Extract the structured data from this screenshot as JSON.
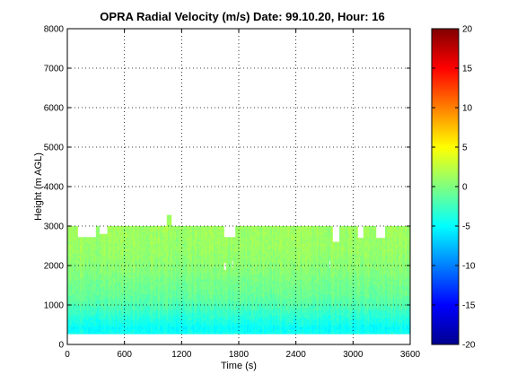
{
  "chart_data": {
    "type": "heatmap",
    "title": "OPRA Radial Velocity (m/s)  Date: 99.10.20, Hour: 16",
    "xlabel": "Time (s)",
    "ylabel": "Height (m AGL)",
    "xlim": [
      0,
      3600
    ],
    "ylim": [
      0,
      8000
    ],
    "x_ticks": [
      0,
      600,
      1200,
      1800,
      2400,
      3000,
      3600
    ],
    "y_ticks": [
      0,
      1000,
      2000,
      3000,
      4000,
      5000,
      6000,
      7000,
      8000
    ],
    "grid": true,
    "colormap": "jet",
    "clim": [
      -20,
      20
    ],
    "colorbar_ticks": [
      -20,
      -15,
      -10,
      -5,
      0,
      5,
      10,
      15,
      20
    ],
    "data_extent": {
      "time": [
        0,
        3600
      ],
      "height": [
        270,
        3000
      ]
    },
    "height_profile": [
      {
        "height": 300,
        "velocity": -4.5
      },
      {
        "height": 400,
        "velocity": -5.0
      },
      {
        "height": 500,
        "velocity": -4.2
      },
      {
        "height": 600,
        "velocity": -3.8
      },
      {
        "height": 700,
        "velocity": -3.2
      },
      {
        "height": 800,
        "velocity": -2.8
      },
      {
        "height": 900,
        "velocity": -2.2
      },
      {
        "height": 1000,
        "velocity": -1.8
      },
      {
        "height": 1200,
        "velocity": -1.0
      },
      {
        "height": 1400,
        "velocity": -0.6
      },
      {
        "height": 1600,
        "velocity": -0.3
      },
      {
        "height": 1800,
        "velocity": 0.2
      },
      {
        "height": 2000,
        "velocity": 0.5
      },
      {
        "height": 2200,
        "velocity": 0.8
      },
      {
        "height": 2400,
        "velocity": 1.0
      },
      {
        "height": 2600,
        "velocity": 1.1
      },
      {
        "height": 2800,
        "velocity": 1.2
      },
      {
        "height": 3000,
        "velocity": 1.2
      }
    ],
    "top_gaps": [
      {
        "time": [
          100,
          300
        ],
        "height_top": 2720
      },
      {
        "time": [
          330,
          420
        ],
        "height_top": 2800
      },
      {
        "time": [
          1640,
          1760
        ],
        "height_top": 2720
      },
      {
        "time": [
          2780,
          2850
        ],
        "height_top": 2600
      },
      {
        "time": [
          3040,
          3100
        ],
        "height_top": 2700
      },
      {
        "time": [
          3230,
          3330
        ],
        "height_top": 2700
      }
    ],
    "bumps": [
      {
        "time": [
          1040,
          1090
        ],
        "height_top": 3280
      }
    ],
    "holes": [
      {
        "time": [
          1640,
          1660
        ],
        "height": [
          1850,
          2050
        ]
      },
      {
        "time": [
          1720,
          1740
        ],
        "height": [
          1900,
          2100
        ]
      },
      {
        "time": [
          2740,
          2760
        ],
        "height": [
          1900,
          2100
        ]
      }
    ]
  }
}
